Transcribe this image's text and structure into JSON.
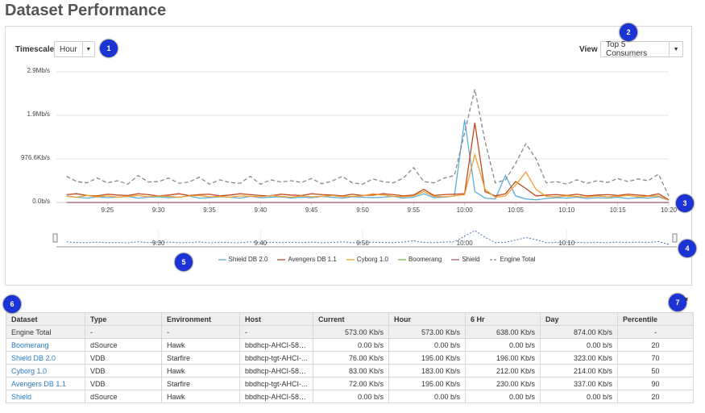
{
  "header": {
    "title": "Dataset Performance"
  },
  "controls": {
    "timescale_label": "Timescale",
    "timescale_value": "Hour",
    "view_label": "View",
    "view_value": "Top 5 Consumers"
  },
  "callouts": [
    "1",
    "2",
    "3",
    "4",
    "5",
    "6",
    "7"
  ],
  "chart_data": {
    "type": "line",
    "x": [
      561,
      562,
      563,
      564,
      565,
      566,
      567,
      568,
      569,
      570,
      571,
      572,
      573,
      574,
      575,
      576,
      577,
      578,
      579,
      580,
      581,
      582,
      583,
      584,
      585,
      586,
      587,
      588,
      589,
      590,
      591,
      592,
      593,
      594,
      595,
      596,
      597,
      598,
      599,
      600,
      601,
      602,
      603,
      604,
      605,
      606,
      607,
      608,
      609,
      610,
      611,
      612,
      613,
      614,
      615,
      616,
      617,
      618,
      619,
      620
    ],
    "xlim": [
      560,
      620
    ],
    "xticks": [
      {
        "value": 565,
        "label": "9:25"
      },
      {
        "value": 570,
        "label": "9:30"
      },
      {
        "value": 575,
        "label": "9:35"
      },
      {
        "value": 580,
        "label": "9:40"
      },
      {
        "value": 585,
        "label": "9:45"
      },
      {
        "value": 590,
        "label": "9:50"
      },
      {
        "value": 595,
        "label": "9:55"
      },
      {
        "value": 600,
        "label": "10:00"
      },
      {
        "value": 605,
        "label": "10:05"
      },
      {
        "value": 610,
        "label": "10:10"
      },
      {
        "value": 615,
        "label": "10:15"
      },
      {
        "value": 620,
        "label": "10:20"
      }
    ],
    "ylim": [
      0,
      3000000
    ],
    "yticks": [
      {
        "value": 0,
        "label": "0.0b/s"
      },
      {
        "value": 1000000,
        "label": "976.6Kb/s"
      },
      {
        "value": 2000000,
        "label": "1.9Mb/s"
      },
      {
        "value": 3000000,
        "label": "2.9Mb/s"
      }
    ],
    "grid": true,
    "series": [
      {
        "name": "Shield DB 2.0",
        "color": "#5aaedf",
        "values": [
          150000,
          120000,
          100000,
          130000,
          110000,
          120000,
          140000,
          100000,
          120000,
          130000,
          110000,
          120000,
          150000,
          100000,
          110000,
          130000,
          120000,
          100000,
          140000,
          110000,
          120000,
          130000,
          100000,
          120000,
          110000,
          140000,
          120000,
          100000,
          130000,
          120000,
          110000,
          120000,
          140000,
          100000,
          120000,
          200000,
          110000,
          120000,
          150000,
          1900000,
          250000,
          100000,
          80000,
          620000,
          150000,
          80000,
          60000,
          90000,
          110000,
          100000,
          120000,
          90000,
          110000,
          100000,
          120000,
          90000,
          110000,
          100000,
          130000,
          50000
        ]
      },
      {
        "name": "Avengers DB 1.1",
        "color": "#c0461b",
        "values": [
          180000,
          200000,
          160000,
          150000,
          190000,
          170000,
          160000,
          200000,
          180000,
          150000,
          170000,
          200000,
          160000,
          180000,
          190000,
          150000,
          170000,
          200000,
          180000,
          160000,
          150000,
          190000,
          170000,
          160000,
          200000,
          180000,
          170000,
          150000,
          190000,
          160000,
          170000,
          200000,
          180000,
          150000,
          170000,
          300000,
          160000,
          180000,
          190000,
          200000,
          1830000,
          250000,
          150000,
          200000,
          480000,
          320000,
          150000,
          170000,
          180000,
          160000,
          190000,
          150000,
          170000,
          180000,
          160000,
          190000,
          170000,
          150000,
          200000,
          60000
        ]
      },
      {
        "name": "Cyborg 1.0",
        "color": "#f0a030",
        "values": [
          140000,
          120000,
          160000,
          130000,
          150000,
          120000,
          140000,
          160000,
          130000,
          150000,
          140000,
          120000,
          150000,
          160000,
          130000,
          140000,
          120000,
          150000,
          140000,
          130000,
          160000,
          140000,
          120000,
          150000,
          130000,
          140000,
          160000,
          130000,
          140000,
          150000,
          200000,
          170000,
          140000,
          130000,
          150000,
          250000,
          140000,
          130000,
          150000,
          180000,
          1100000,
          300000,
          120000,
          150000,
          400000,
          700000,
          300000,
          140000,
          130000,
          150000,
          140000,
          120000,
          150000,
          130000,
          140000,
          160000,
          130000,
          140000,
          150000,
          50000
        ]
      },
      {
        "name": "Boomerang",
        "color": "#6cc04a",
        "values": [
          0,
          0,
          0,
          0,
          0,
          0,
          0,
          0,
          0,
          0,
          0,
          0,
          0,
          0,
          0,
          0,
          0,
          0,
          0,
          0,
          0,
          0,
          0,
          0,
          0,
          0,
          0,
          0,
          0,
          0,
          0,
          0,
          0,
          0,
          0,
          0,
          0,
          0,
          0,
          0,
          0,
          0,
          0,
          0,
          0,
          0,
          0,
          0,
          0,
          0,
          0,
          0,
          0,
          0,
          0,
          0,
          0,
          0,
          0,
          0
        ]
      },
      {
        "name": "Shield",
        "color": "#b05a8a",
        "values": [
          0,
          0,
          0,
          0,
          0,
          0,
          0,
          0,
          0,
          0,
          0,
          0,
          0,
          0,
          0,
          0,
          0,
          0,
          0,
          0,
          0,
          0,
          0,
          0,
          0,
          0,
          0,
          0,
          0,
          0,
          0,
          0,
          0,
          0,
          0,
          0,
          0,
          0,
          0,
          0,
          0,
          0,
          0,
          0,
          0,
          0,
          0,
          0,
          0,
          0,
          0,
          0,
          0,
          0,
          0,
          0,
          0,
          0,
          0,
          0
        ]
      },
      {
        "name": "Engine Total",
        "color": "#888888",
        "dashed": true,
        "values": [
          600000,
          480000,
          450000,
          560000,
          450000,
          500000,
          420000,
          620000,
          470000,
          480000,
          560000,
          440000,
          470000,
          580000,
          420000,
          520000,
          460000,
          440000,
          600000,
          420000,
          520000,
          470000,
          500000,
          460000,
          550000,
          430000,
          490000,
          600000,
          450000,
          420000,
          540000,
          480000,
          450000,
          560000,
          800000,
          480000,
          450000,
          560000,
          620000,
          1600000,
          2600000,
          1400000,
          450000,
          520000,
          900000,
          1350000,
          1000000,
          450000,
          480000,
          420000,
          520000,
          440000,
          500000,
          460000,
          550000,
          480000,
          540000,
          500000,
          650000,
          150000
        ]
      }
    ],
    "navigator": {
      "xticks": [
        {
          "value": 570,
          "label": "9:30"
        },
        {
          "value": 580,
          "label": "9:40"
        },
        {
          "value": 590,
          "label": "9:50"
        },
        {
          "value": 600,
          "label": "10:00"
        },
        {
          "value": 610,
          "label": "10:10"
        }
      ]
    }
  },
  "table": {
    "columns": [
      "Dataset",
      "Type",
      "Environment",
      "Host",
      "Current",
      "Hour",
      "6 Hr",
      "Day",
      "Percentile"
    ],
    "rows": [
      [
        "Engine Total",
        "-",
        "-",
        "-",
        "573.00 Kb/s",
        "573.00 Kb/s",
        "638.00 Kb/s",
        "874.00 Kb/s",
        "-"
      ],
      [
        "Boomerang",
        "dSource",
        "Hawk",
        "bbdhcp-AHCI-585...",
        "0.00 b/s",
        "0.00 b/s",
        "0.00 b/s",
        "0.00 b/s",
        "20"
      ],
      [
        "Shield DB 2.0",
        "VDB",
        "Starfire",
        "bbdhcp-tgt-AHCI-...",
        "76.00 Kb/s",
        "195.00 Kb/s",
        "196.00 Kb/s",
        "323.00 Kb/s",
        "70"
      ],
      [
        "Cyborg 1.0",
        "VDB",
        "Hawk",
        "bbdhcp-AHCI-585...",
        "83.00 Kb/s",
        "183.00 Kb/s",
        "212.00 Kb/s",
        "214.00 Kb/s",
        "50"
      ],
      [
        "Avengers DB 1.1",
        "VDB",
        "Starfire",
        "bbdhcp-tgt-AHCI-...",
        "72.00 Kb/s",
        "195.00 Kb/s",
        "230.00 Kb/s",
        "337.00 Kb/s",
        "90"
      ],
      [
        "Shield",
        "dSource",
        "Hawk",
        "bbdhcp-AHCI-585...",
        "0.00 b/s",
        "0.00 b/s",
        "0.00 b/s",
        "0.00 b/s",
        "20"
      ]
    ]
  }
}
